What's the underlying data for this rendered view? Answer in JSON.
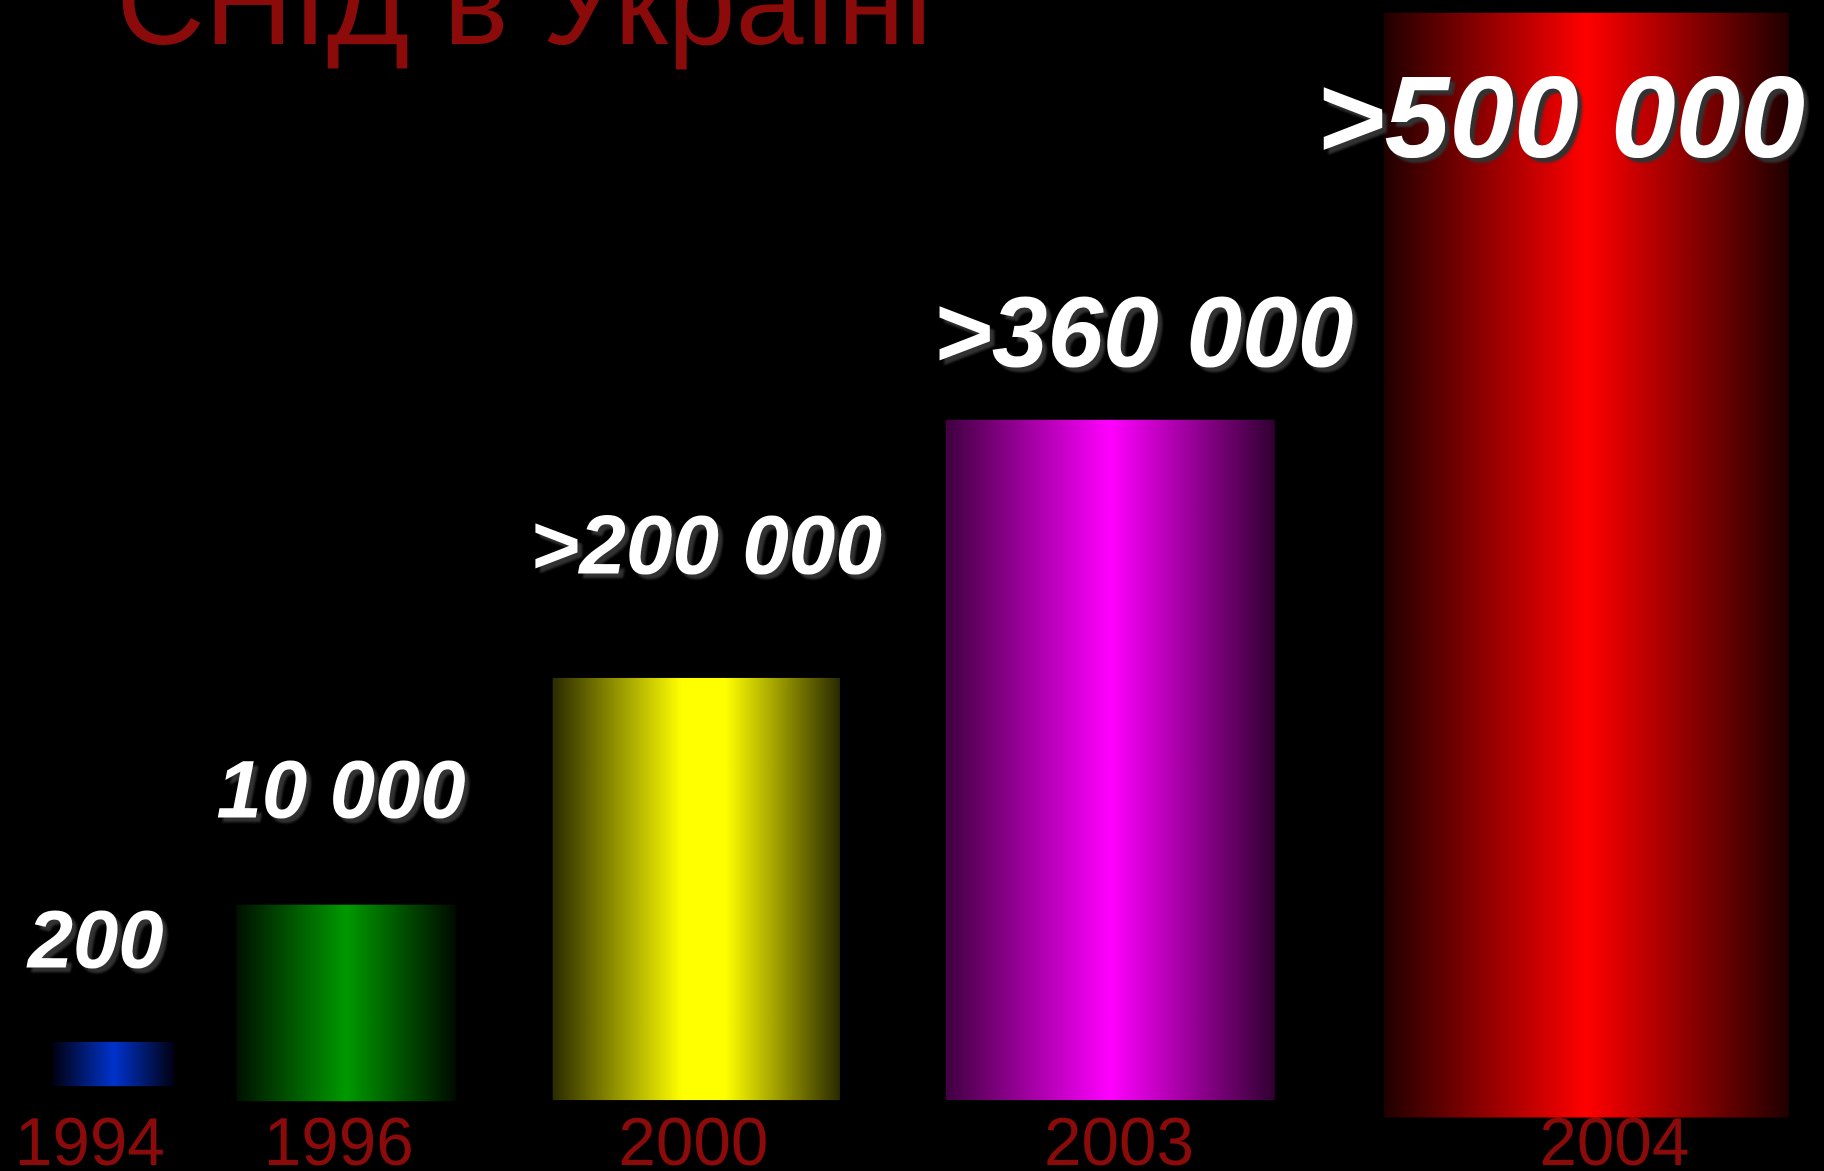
{
  "title": "СНІД в Україні",
  "items": [
    {
      "year": "1994",
      "label": "200"
    },
    {
      "year": "1996",
      "label": "10 000"
    },
    {
      "year": "2000",
      "label": ">200 000"
    },
    {
      "year": "2003",
      "label": ">360 000"
    },
    {
      "year": "2004",
      "label": ">500 000"
    }
  ]
}
